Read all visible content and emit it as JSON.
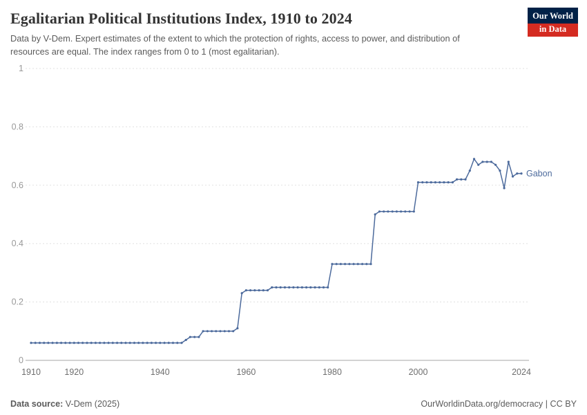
{
  "header": {
    "title": "Egalitarian Political Institutions Index, 1910 to 2024",
    "subtitle": "Data by V-Dem. Expert estimates of the extent to which the protection of rights, access to power, and distribution of resources are equal. The index ranges from 0 to 1 (most egalitarian).",
    "logo": {
      "line1": "Our World",
      "line2": "in Data"
    }
  },
  "footer": {
    "source_label": "Data source:",
    "source_value": " V-Dem (2025)",
    "link_text": "OurWorldinData.org/democracy",
    "license_suffix": " | CC BY"
  },
  "colors": {
    "series": "#4c6a9c",
    "logo_bg": "#002147",
    "logo_accent": "#d42b21",
    "grid": "#e0e0e0",
    "axis": "#a5a5a5",
    "y_tick_label": "#999999",
    "x_tick_label": "#6e6e6e"
  },
  "chart_data": {
    "type": "line",
    "title": "Egalitarian Political Institutions Index, 1910 to 2024",
    "xlabel": "",
    "ylabel": "",
    "xlim": [
      1910,
      2024
    ],
    "ylim": [
      0,
      1
    ],
    "yticks": [
      0,
      0.2,
      0.4,
      0.6,
      0.8,
      1
    ],
    "xticks": [
      1910,
      1920,
      1940,
      1960,
      1980,
      2000,
      2024
    ],
    "grid": "horizontal-dashed",
    "legend_position": "end-of-line-label",
    "series": [
      {
        "name": "Gabon",
        "color": "#4c6a9c",
        "x": [
          1910,
          1911,
          1912,
          1913,
          1914,
          1915,
          1916,
          1917,
          1918,
          1919,
          1920,
          1921,
          1922,
          1923,
          1924,
          1925,
          1926,
          1927,
          1928,
          1929,
          1930,
          1931,
          1932,
          1933,
          1934,
          1935,
          1936,
          1937,
          1938,
          1939,
          1940,
          1941,
          1942,
          1943,
          1944,
          1945,
          1946,
          1947,
          1948,
          1949,
          1950,
          1951,
          1952,
          1953,
          1954,
          1955,
          1956,
          1957,
          1958,
          1959,
          1960,
          1961,
          1962,
          1963,
          1964,
          1965,
          1966,
          1967,
          1968,
          1969,
          1970,
          1971,
          1972,
          1973,
          1974,
          1975,
          1976,
          1977,
          1978,
          1979,
          1980,
          1981,
          1982,
          1983,
          1984,
          1985,
          1986,
          1987,
          1988,
          1989,
          1990,
          1991,
          1992,
          1993,
          1994,
          1995,
          1996,
          1997,
          1998,
          1999,
          2000,
          2001,
          2002,
          2003,
          2004,
          2005,
          2006,
          2007,
          2008,
          2009,
          2010,
          2011,
          2012,
          2013,
          2014,
          2015,
          2016,
          2017,
          2018,
          2019,
          2020,
          2021,
          2022,
          2023,
          2024
        ],
        "values": [
          0.06,
          0.06,
          0.06,
          0.06,
          0.06,
          0.06,
          0.06,
          0.06,
          0.06,
          0.06,
          0.06,
          0.06,
          0.06,
          0.06,
          0.06,
          0.06,
          0.06,
          0.06,
          0.06,
          0.06,
          0.06,
          0.06,
          0.06,
          0.06,
          0.06,
          0.06,
          0.06,
          0.06,
          0.06,
          0.06,
          0.06,
          0.06,
          0.06,
          0.06,
          0.06,
          0.06,
          0.07,
          0.08,
          0.08,
          0.08,
          0.1,
          0.1,
          0.1,
          0.1,
          0.1,
          0.1,
          0.1,
          0.1,
          0.11,
          0.23,
          0.24,
          0.24,
          0.24,
          0.24,
          0.24,
          0.24,
          0.25,
          0.25,
          0.25,
          0.25,
          0.25,
          0.25,
          0.25,
          0.25,
          0.25,
          0.25,
          0.25,
          0.25,
          0.25,
          0.25,
          0.33,
          0.33,
          0.33,
          0.33,
          0.33,
          0.33,
          0.33,
          0.33,
          0.33,
          0.33,
          0.5,
          0.51,
          0.51,
          0.51,
          0.51,
          0.51,
          0.51,
          0.51,
          0.51,
          0.51,
          0.61,
          0.61,
          0.61,
          0.61,
          0.61,
          0.61,
          0.61,
          0.61,
          0.61,
          0.62,
          0.62,
          0.62,
          0.65,
          0.69,
          0.67,
          0.68,
          0.68,
          0.68,
          0.67,
          0.65,
          0.59,
          0.68,
          0.63,
          0.64,
          0.64
        ]
      }
    ]
  }
}
